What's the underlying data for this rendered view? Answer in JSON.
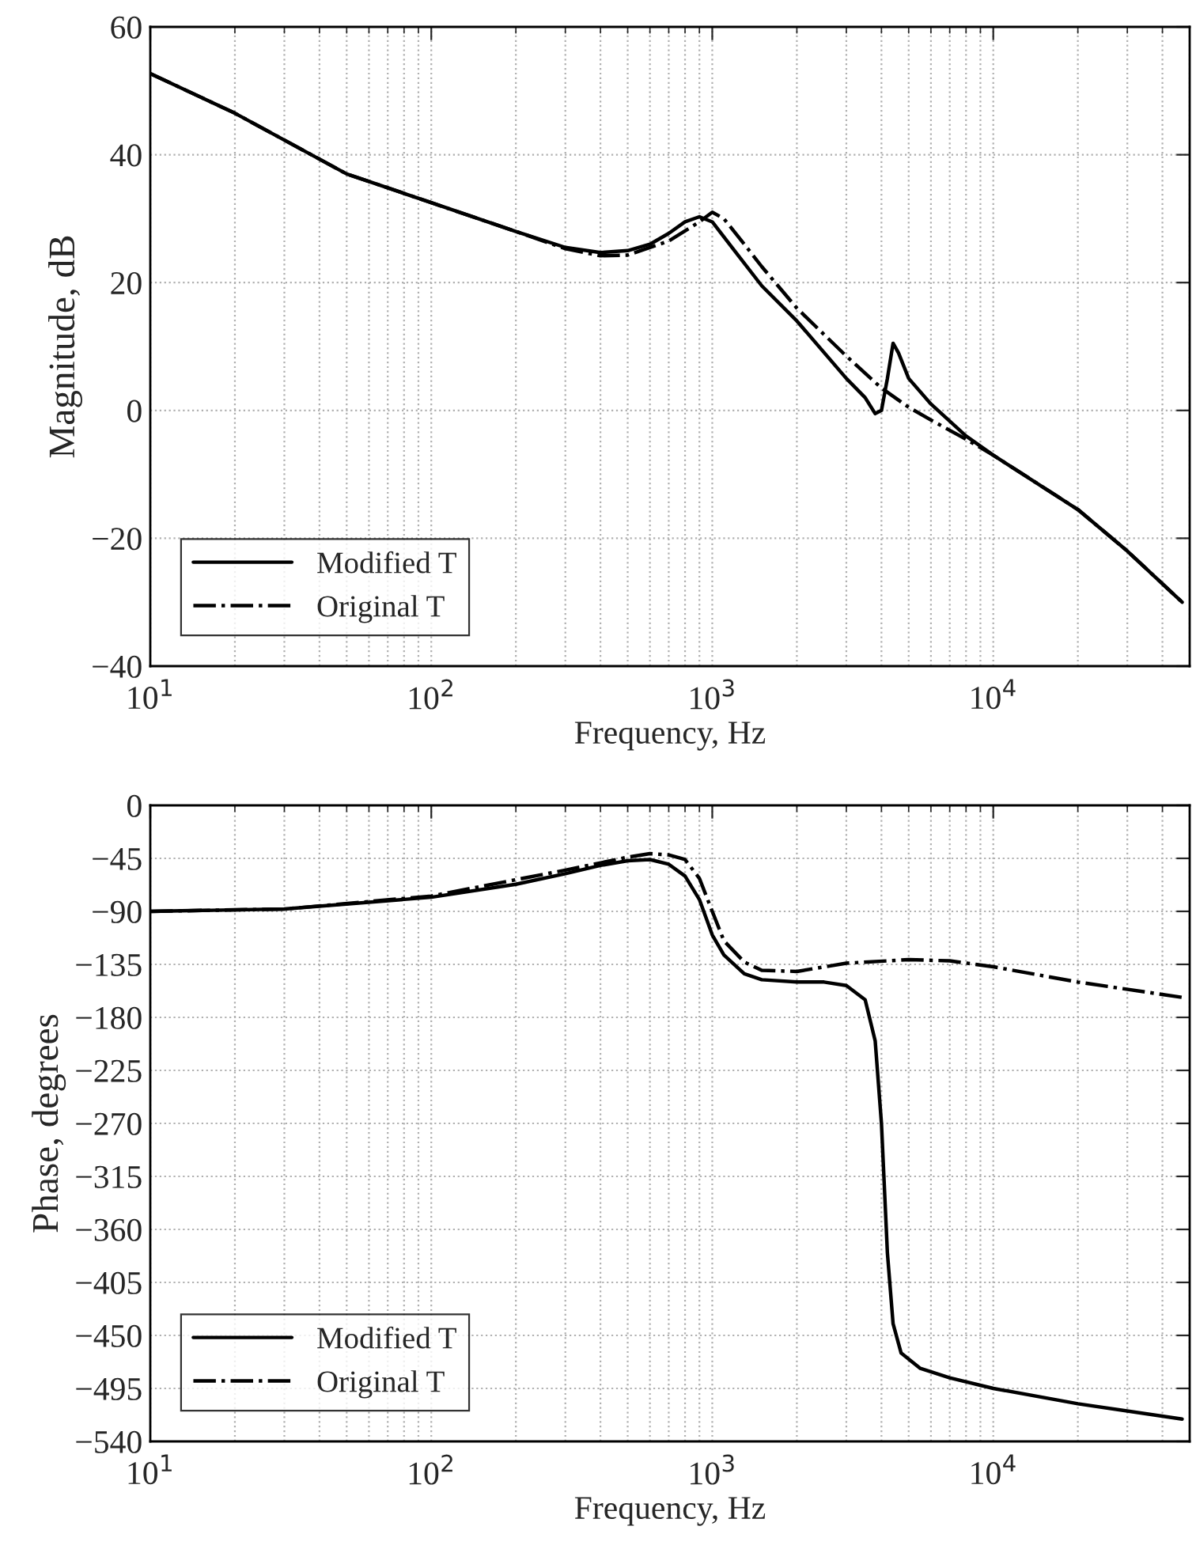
{
  "chart_data": [
    {
      "type": "line",
      "xlabel": "Frequency, Hz",
      "ylabel": "Magnitude, dB",
      "log": "x",
      "grid": true,
      "legend": "bottom left",
      "xlim": [
        10,
        50000
      ],
      "xticks": [
        {
          "value": 10,
          "label": "10$^{1}$"
        },
        {
          "value": 100,
          "label": "10$^{2}$"
        },
        {
          "value": 1000,
          "label": "10$^{3}$"
        },
        {
          "value": 10000,
          "label": "10$^{4}$"
        }
      ],
      "ylim": [
        -40,
        60
      ],
      "yticks": [
        {
          "value": -40,
          "label": "−40"
        },
        {
          "value": -20,
          "label": "−20"
        },
        0,
        20,
        40,
        60
      ],
      "series": [
        {
          "name": "Modified T",
          "color": "#000000",
          "line_style": "solid",
          "x": [
            10,
            20,
            50,
            100,
            200,
            300,
            400,
            500,
            600,
            700,
            800,
            900,
            1000,
            1200,
            1500,
            2000,
            3000,
            3500,
            3800,
            4000,
            4200,
            4400,
            4600,
            5000,
            6000,
            8000,
            10000,
            20000,
            30000,
            47000
          ],
          "values": [
            52.7,
            46.5,
            37,
            32.5,
            28,
            25.5,
            24.7,
            25,
            26,
            27.7,
            29.5,
            30.3,
            29.5,
            25,
            19.5,
            14,
            5,
            2,
            -0.5,
            0,
            5,
            10.5,
            9,
            5,
            1,
            -4,
            -7,
            -15.5,
            -22,
            -30
          ]
        },
        {
          "name": "Original T",
          "color": "#000000",
          "line_style": "dashdot",
          "x": [
            10,
            20,
            50,
            100,
            200,
            300,
            400,
            500,
            700,
            900,
            1000,
            1100,
            1300,
            1500,
            2000,
            3000,
            4000,
            5000,
            6000,
            8000,
            10000,
            20000,
            30000,
            47000
          ],
          "values": [
            52.7,
            46.5,
            37,
            32.5,
            28,
            25.3,
            24.2,
            24.3,
            26.5,
            29.5,
            31,
            30,
            26,
            22.5,
            16,
            8.5,
            3.5,
            0.5,
            -1.5,
            -4.5,
            -7,
            -15.5,
            -22,
            -30
          ]
        }
      ]
    },
    {
      "type": "line",
      "xlabel": "Frequency, Hz",
      "ylabel": "Phase, degrees",
      "log": "x",
      "grid": true,
      "legend": "bottom left",
      "xlim": [
        10,
        50000
      ],
      "xticks": [
        {
          "value": 10,
          "label": "10$^{1}$"
        },
        {
          "value": 100,
          "label": "10$^{2}$"
        },
        {
          "value": 1000,
          "label": "10$^{3}$"
        },
        {
          "value": 10000,
          "label": "10$^{4}$"
        }
      ],
      "ylim": [
        -540,
        0
      ],
      "yticks": [
        {
          "value": -540,
          "label": "−540"
        },
        {
          "value": -495,
          "label": "−495"
        },
        {
          "value": -450,
          "label": "−450"
        },
        {
          "value": -405,
          "label": "−405"
        },
        {
          "value": -360,
          "label": "−360"
        },
        {
          "value": -315,
          "label": "−315"
        },
        {
          "value": -270,
          "label": "−270"
        },
        {
          "value": -225,
          "label": "−225"
        },
        {
          "value": -180,
          "label": "−180"
        },
        {
          "value": -135,
          "label": "−135"
        },
        {
          "value": -90,
          "label": "−90"
        },
        {
          "value": -45,
          "label": "−45"
        },
        0
      ],
      "series": [
        {
          "name": "Modified T",
          "color": "#000000",
          "line_style": "solid",
          "x": [
            10,
            30,
            100,
            200,
            300,
            400,
            500,
            600,
            700,
            800,
            900,
            1000,
            1100,
            1300,
            1500,
            2000,
            2500,
            3000,
            3500,
            3800,
            4000,
            4200,
            4400,
            4700,
            5500,
            7000,
            10000,
            20000,
            47000
          ],
          "values": [
            -90,
            -88,
            -78,
            -67,
            -58,
            -51,
            -47,
            -46,
            -50,
            -60,
            -80,
            -110,
            -127,
            -143,
            -148,
            -150,
            -150,
            -153,
            -165,
            -200,
            -270,
            -380,
            -440,
            -465,
            -478,
            -486,
            -495,
            -508,
            -521
          ]
        },
        {
          "name": "Original T",
          "color": "#000000",
          "line_style": "dashdot",
          "x": [
            10,
            30,
            100,
            300,
            500,
            600,
            700,
            800,
            900,
            1000,
            1100,
            1300,
            1500,
            2000,
            3000,
            5000,
            7000,
            10000,
            20000,
            47000
          ],
          "values": [
            -90,
            -88,
            -77,
            -55,
            -44,
            -41,
            -42,
            -46,
            -62,
            -90,
            -115,
            -133,
            -140,
            -141,
            -134,
            -131,
            -132,
            -137,
            -150,
            -163
          ]
        }
      ]
    }
  ]
}
